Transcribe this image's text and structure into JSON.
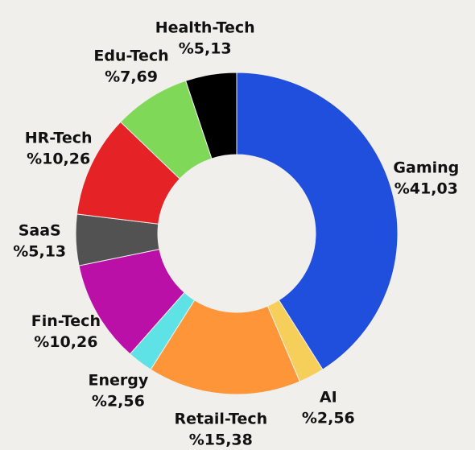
{
  "chart_data": {
    "type": "donut",
    "categories": [
      "Gaming",
      "AI",
      "Retail-Tech",
      "Energy",
      "Fin-Tech",
      "SaaS",
      "HR-Tech",
      "Edu-Tech",
      "Health-Tech"
    ],
    "values": [
      41.03,
      2.56,
      15.38,
      2.56,
      10.26,
      5.13,
      10.26,
      7.69,
      5.13
    ],
    "value_labels": [
      "%41,03",
      "%2,56",
      "%15,38",
      "%2,56",
      "%10,26",
      "%5,13",
      "%10,26",
      "%7,69",
      "%5,13"
    ],
    "colors": [
      "#1f4fdc",
      "#f6cf5a",
      "#fe9538",
      "#5ee2e6",
      "#bb10a8",
      "#525252",
      "#e52226",
      "#7fd858",
      "#000000"
    ]
  }
}
